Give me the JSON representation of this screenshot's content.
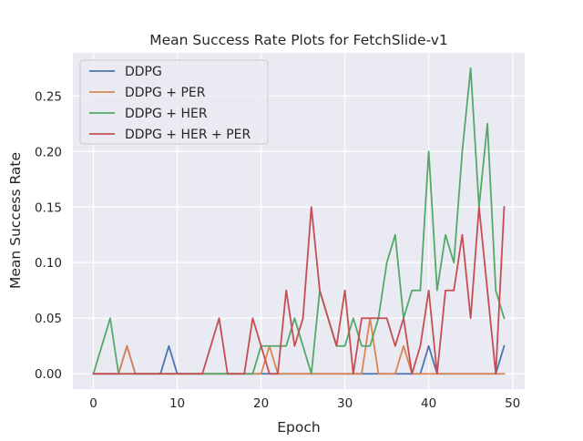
{
  "chart_data": {
    "type": "line",
    "title": "Mean Success Rate Plots for FetchSlide-v1",
    "xlabel": "Epoch",
    "ylabel": "Mean Success Rate",
    "xlim": [
      -2.45,
      51.45
    ],
    "ylim": [
      -0.01375,
      0.28875
    ],
    "xticks": [
      0,
      10,
      20,
      30,
      40,
      50
    ],
    "xtick_labels": [
      "0",
      "10",
      "20",
      "30",
      "40",
      "50"
    ],
    "yticks": [
      0.0,
      0.05,
      0.1,
      0.15,
      0.2,
      0.25
    ],
    "ytick_labels": [
      "0.00",
      "0.05",
      "0.10",
      "0.15",
      "0.20",
      "0.25"
    ],
    "grid": true,
    "legend_position": "top-left",
    "x": [
      0,
      1,
      2,
      3,
      4,
      5,
      6,
      7,
      8,
      9,
      10,
      11,
      12,
      13,
      14,
      15,
      16,
      17,
      18,
      19,
      20,
      21,
      22,
      23,
      24,
      25,
      26,
      27,
      28,
      29,
      30,
      31,
      32,
      33,
      34,
      35,
      36,
      37,
      38,
      39,
      40,
      41,
      42,
      43,
      44,
      45,
      46,
      47,
      48,
      49
    ],
    "series": [
      {
        "name": "DDPG",
        "color": "#4c72b0",
        "values": [
          0,
          0,
          0,
          0,
          0.025,
          0,
          0,
          0,
          0,
          0.025,
          0,
          0,
          0,
          0,
          0,
          0,
          0,
          0,
          0,
          0,
          0,
          0,
          0,
          0,
          0,
          0,
          0,
          0,
          0,
          0,
          0,
          0,
          0,
          0,
          0,
          0,
          0,
          0,
          0,
          0,
          0.025,
          0,
          0,
          0,
          0,
          0,
          0,
          0,
          0,
          0.025
        ]
      },
      {
        "name": "DDPG + PER",
        "color": "#dd8452",
        "values": [
          0,
          0,
          0,
          0,
          0.025,
          0,
          0,
          0,
          0,
          0,
          0,
          0,
          0,
          0,
          0,
          0,
          0,
          0,
          0,
          0,
          0,
          0.025,
          0,
          0,
          0,
          0,
          0,
          0,
          0,
          0,
          0,
          0,
          0,
          0.05,
          0,
          0,
          0,
          0.025,
          0,
          0,
          0,
          0,
          0,
          0,
          0,
          0,
          0,
          0,
          0,
          0
        ]
      },
      {
        "name": "DDPG + HER",
        "color": "#55a868",
        "values": [
          0,
          0.025,
          0.05,
          0,
          0,
          0,
          0,
          0,
          0,
          0,
          0,
          0,
          0,
          0,
          0,
          0,
          0,
          0,
          0,
          0,
          0.025,
          0.025,
          0.025,
          0.025,
          0.05,
          0.025,
          0,
          0.075,
          0.05,
          0.025,
          0.025,
          0.05,
          0.025,
          0.025,
          0.05,
          0.1,
          0.125,
          0.05,
          0.075,
          0.075,
          0.2,
          0.075,
          0.125,
          0.1,
          0.2,
          0.275,
          0.15,
          0.225,
          0.075,
          0.05
        ]
      },
      {
        "name": "DDPG + HER + PER",
        "color": "#c44e52",
        "values": [
          0,
          0,
          0,
          0,
          0,
          0,
          0,
          0,
          0,
          0,
          0,
          0,
          0,
          0,
          0.025,
          0.05,
          0,
          0,
          0,
          0.05,
          0.025,
          0,
          0,
          0.075,
          0.025,
          0.05,
          0.15,
          0.075,
          0.05,
          0.025,
          0.075,
          0,
          0.05,
          0.05,
          0.05,
          0.05,
          0.025,
          0.05,
          0,
          0.025,
          0.075,
          0,
          0.075,
          0.075,
          0.125,
          0.05,
          0.15,
          0.075,
          0,
          0.15
        ]
      }
    ]
  }
}
